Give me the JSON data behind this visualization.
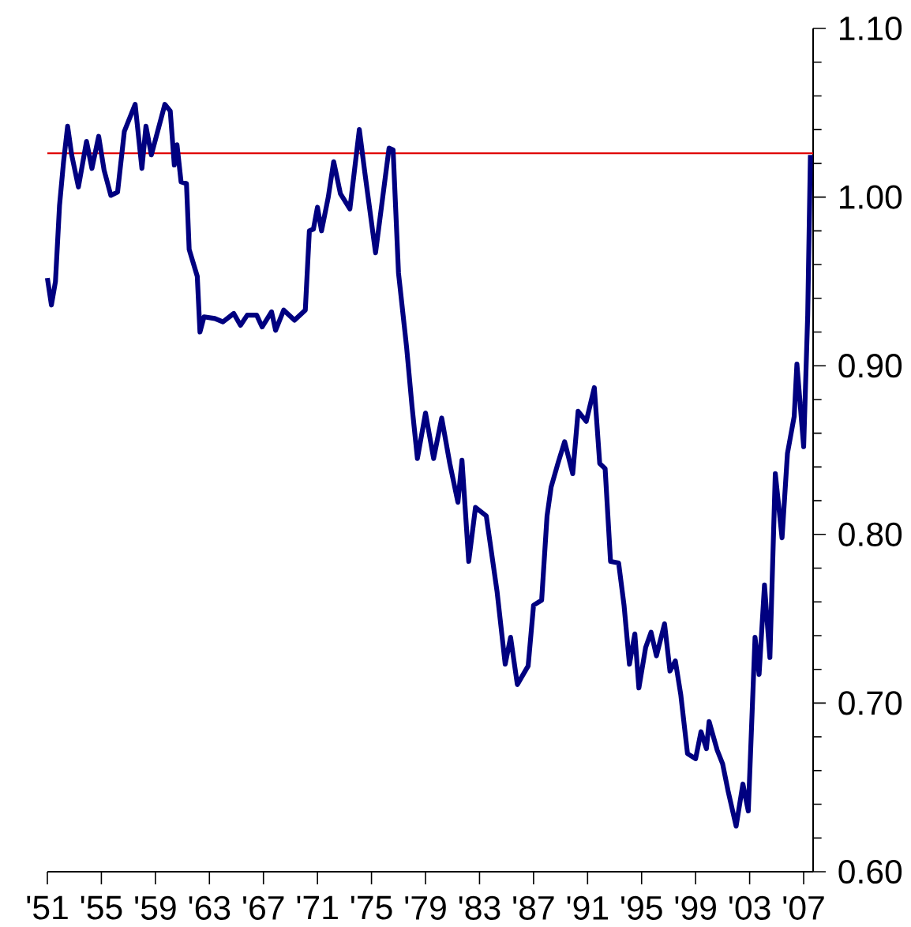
{
  "chart_data": {
    "type": "line",
    "x": [
      1951.0,
      1951.3,
      1951.6,
      1951.9,
      1952.2,
      1952.5,
      1952.8,
      1953.3,
      1953.9,
      1954.3,
      1954.8,
      1955.2,
      1955.7,
      1956.2,
      1956.7,
      1957.5,
      1958.0,
      1958.3,
      1958.7,
      1959.7,
      1960.1,
      1960.4,
      1960.6,
      1960.9,
      1961.3,
      1961.5,
      1962.1,
      1962.3,
      1962.6,
      1963.4,
      1964.0,
      1964.8,
      1965.3,
      1965.8,
      1966.5,
      1966.9,
      1967.6,
      1967.9,
      1968.5,
      1969.3,
      1970.1,
      1970.4,
      1970.7,
      1971.0,
      1971.3,
      1971.8,
      1972.2,
      1972.7,
      1973.4,
      1974.1,
      1974.5,
      1975.3,
      1976.3,
      1976.6,
      1977.0,
      1977.6,
      1978.0,
      1978.4,
      1979.0,
      1979.6,
      1980.2,
      1980.8,
      1981.4,
      1981.7,
      1982.2,
      1982.7,
      1983.5,
      1984.3,
      1984.9,
      1985.3,
      1985.8,
      1986.6,
      1987.0,
      1987.6,
      1988.0,
      1988.3,
      1988.8,
      1989.3,
      1989.9,
      1990.3,
      1990.9,
      1991.5,
      1991.9,
      1992.3,
      1992.7,
      1993.3,
      1993.7,
      1994.1,
      1994.5,
      1994.8,
      1995.3,
      1995.7,
      1996.1,
      1996.7,
      1997.1,
      1997.5,
      1997.9,
      1998.4,
      1999.0,
      1999.4,
      1999.8,
      2000.0,
      2000.6,
      2001.0,
      2001.4,
      2002.0,
      2002.5,
      2002.9,
      2003.4,
      2003.7,
      2004.1,
      2004.5,
      2004.9,
      2005.4,
      2005.8,
      2006.3,
      2006.5,
      2007.0,
      2007.3,
      2007.5
    ],
    "series": [
      {
        "color": "#000080",
        "values": [
          0.952,
          0.936,
          0.95,
          0.995,
          1.021,
          1.042,
          1.025,
          1.006,
          1.033,
          1.017,
          1.036,
          1.016,
          1.001,
          1.003,
          1.039,
          1.055,
          1.017,
          1.042,
          1.025,
          1.055,
          1.051,
          1.019,
          1.031,
          1.009,
          1.008,
          0.969,
          0.953,
          0.92,
          0.929,
          0.928,
          0.926,
          0.931,
          0.924,
          0.93,
          0.93,
          0.923,
          0.932,
          0.921,
          0.933,
          0.927,
          0.933,
          0.98,
          0.981,
          0.994,
          0.98,
          1.0,
          1.021,
          1.002,
          0.993,
          1.04,
          1.015,
          0.967,
          1.029,
          1.028,
          0.955,
          0.911,
          0.876,
          0.845,
          0.872,
          0.845,
          0.869,
          0.842,
          0.819,
          0.844,
          0.784,
          0.816,
          0.811,
          0.766,
          0.723,
          0.739,
          0.711,
          0.722,
          0.758,
          0.761,
          0.811,
          0.828,
          0.842,
          0.855,
          0.836,
          0.873,
          0.867,
          0.887,
          0.842,
          0.839,
          0.784,
          0.783,
          0.758,
          0.723,
          0.741,
          0.709,
          0.733,
          0.742,
          0.728,
          0.747,
          0.719,
          0.725,
          0.705,
          0.67,
          0.667,
          0.683,
          0.673,
          0.689,
          0.672,
          0.664,
          0.648,
          0.627,
          0.652,
          0.636,
          0.739,
          0.717,
          0.77,
          0.727,
          0.836,
          0.798,
          0.848,
          0.87,
          0.901,
          0.852,
          0.93,
          1.025
        ]
      }
    ],
    "xlim": [
      1951,
      2007.7
    ],
    "xticks": [
      {
        "value": 1951,
        "label": "'51"
      },
      {
        "value": 1955,
        "label": "'55"
      },
      {
        "value": 1959,
        "label": "'59"
      },
      {
        "value": 1963,
        "label": "'63"
      },
      {
        "value": 1967,
        "label": "'67"
      },
      {
        "value": 1971,
        "label": "'71"
      },
      {
        "value": 1975,
        "label": "'75"
      },
      {
        "value": 1979,
        "label": "'79"
      },
      {
        "value": 1983,
        "label": "'83"
      },
      {
        "value": 1987,
        "label": "'87"
      },
      {
        "value": 1991,
        "label": "'91"
      },
      {
        "value": 1995,
        "label": "'95"
      },
      {
        "value": 1999,
        "label": "'99"
      },
      {
        "value": 2003,
        "label": "'03"
      },
      {
        "value": 2007,
        "label": "'07"
      }
    ],
    "ylim": [
      0.6,
      1.1
    ],
    "yticks": [
      {
        "value": 0.6,
        "label": "0.60"
      },
      {
        "value": 0.62,
        "label": null
      },
      {
        "value": 0.64,
        "label": null
      },
      {
        "value": 0.66,
        "label": null
      },
      {
        "value": 0.68,
        "label": null
      },
      {
        "value": 0.7,
        "label": "0.70"
      },
      {
        "value": 0.72,
        "label": null
      },
      {
        "value": 0.74,
        "label": null
      },
      {
        "value": 0.76,
        "label": null
      },
      {
        "value": 0.78,
        "label": null
      },
      {
        "value": 0.8,
        "label": "0.80"
      },
      {
        "value": 0.82,
        "label": null
      },
      {
        "value": 0.84,
        "label": null
      },
      {
        "value": 0.86,
        "label": null
      },
      {
        "value": 0.88,
        "label": null
      },
      {
        "value": 0.9,
        "label": "0.90"
      },
      {
        "value": 0.92,
        "label": null
      },
      {
        "value": 0.94,
        "label": null
      },
      {
        "value": 0.96,
        "label": null
      },
      {
        "value": 0.98,
        "label": null
      },
      {
        "value": 1.0,
        "label": "1.00"
      },
      {
        "value": 1.02,
        "label": null
      },
      {
        "value": 1.04,
        "label": null
      },
      {
        "value": 1.06,
        "label": null
      },
      {
        "value": 1.08,
        "label": null
      },
      {
        "value": 1.1,
        "label": "1.10"
      }
    ],
    "ref_lines": [
      {
        "axis": "y",
        "value": 1.026,
        "color": "#e00000"
      }
    ],
    "grid": false,
    "marker": "none",
    "line_style": "solid"
  }
}
